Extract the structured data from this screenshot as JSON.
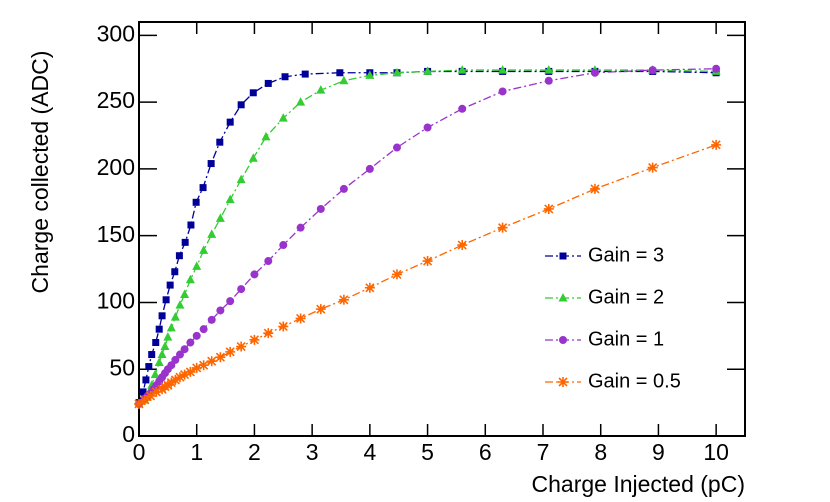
{
  "chart_data": {
    "type": "line",
    "xlabel": "Charge Injected (pC)",
    "ylabel": "Charge collected (ADC)",
    "xlim": [
      0,
      10.5
    ],
    "xticks": [
      0,
      1,
      2,
      3,
      4,
      5,
      6,
      7,
      8,
      9,
      10
    ],
    "ylim": [
      0,
      310
    ],
    "yticks": [
      0,
      50,
      100,
      150,
      200,
      250,
      300
    ],
    "legend": "right",
    "series": [
      {
        "name": "Gain = 3",
        "color": "#000099",
        "marker": "square",
        "x": [
          0,
          0.07,
          0.12,
          0.17,
          0.22,
          0.29,
          0.35,
          0.4,
          0.47,
          0.54,
          0.62,
          0.7,
          0.8,
          0.9,
          0.99,
          1.11,
          1.25,
          1.4,
          1.58,
          1.77,
          1.98,
          2.24,
          2.53,
          2.88,
          3.48,
          4.0,
          4.47,
          5.0,
          5.6,
          6.3,
          7.1,
          7.9,
          8.9,
          10
        ],
        "values": [
          25,
          33,
          42,
          52,
          61,
          70,
          80,
          90,
          102,
          113,
          123,
          135,
          145,
          158,
          175,
          186,
          204,
          220,
          235,
          248,
          257,
          264,
          269,
          271,
          272,
          272,
          272,
          273,
          273,
          273,
          273,
          273,
          273,
          272
        ]
      },
      {
        "name": "Gain = 2",
        "color": "#33cc33",
        "marker": "triangle",
        "x": [
          0,
          0.1,
          0.14,
          0.18,
          0.22,
          0.28,
          0.35,
          0.4,
          0.45,
          0.5,
          0.56,
          0.63,
          0.71,
          0.79,
          0.89,
          1.0,
          1.12,
          1.26,
          1.41,
          1.58,
          1.77,
          1.98,
          2.2,
          2.5,
          2.8,
          3.15,
          3.55,
          4.0,
          4.47,
          5.0,
          5.6,
          6.3,
          7.1,
          7.9,
          8.9,
          10
        ],
        "values": [
          24,
          27,
          29,
          33,
          38,
          46,
          55,
          61,
          67,
          74,
          81,
          89,
          98,
          106,
          117,
          127,
          139,
          151,
          163,
          177,
          192,
          208,
          224,
          238,
          250,
          259,
          266,
          270,
          272,
          273,
          274,
          274,
          274,
          274,
          274,
          273
        ]
      },
      {
        "name": "Gain = 1",
        "color": "#9933cc",
        "marker": "circle",
        "x": [
          0,
          0.1,
          0.15,
          0.2,
          0.25,
          0.3,
          0.35,
          0.4,
          0.45,
          0.5,
          0.56,
          0.63,
          0.71,
          0.79,
          0.89,
          1.0,
          1.12,
          1.26,
          1.41,
          1.58,
          1.77,
          2.0,
          2.24,
          2.5,
          2.8,
          3.15,
          3.55,
          4.0,
          4.47,
          5.0,
          5.6,
          6.3,
          7.1,
          7.9,
          8.9,
          10
        ],
        "values": [
          24,
          28,
          30,
          32,
          35,
          38,
          41,
          44,
          47,
          50,
          53,
          57,
          61,
          65,
          70,
          75,
          80,
          87,
          94,
          101,
          110,
          121,
          131,
          143,
          156,
          170,
          185,
          200,
          216,
          231,
          245,
          258,
          266,
          272,
          274,
          275
        ]
      },
      {
        "name": "Gain = 0.5",
        "color": "#ff6600",
        "marker": "star",
        "x": [
          0,
          0.1,
          0.2,
          0.3,
          0.4,
          0.45,
          0.5,
          0.56,
          0.63,
          0.71,
          0.79,
          0.89,
          1.0,
          1.12,
          1.26,
          1.41,
          1.58,
          1.77,
          2.0,
          2.24,
          2.5,
          2.8,
          3.15,
          3.55,
          4.0,
          4.47,
          5.0,
          5.6,
          6.3,
          7.1,
          7.9,
          8.9,
          10
        ],
        "values": [
          24,
          27,
          30,
          33,
          35,
          37,
          38,
          40,
          42,
          44,
          46,
          48,
          51,
          53,
          56,
          59,
          63,
          67,
          72,
          77,
          82,
          88,
          95,
          102,
          111,
          121,
          131,
          143,
          156,
          170,
          185,
          201,
          218
        ]
      }
    ]
  }
}
